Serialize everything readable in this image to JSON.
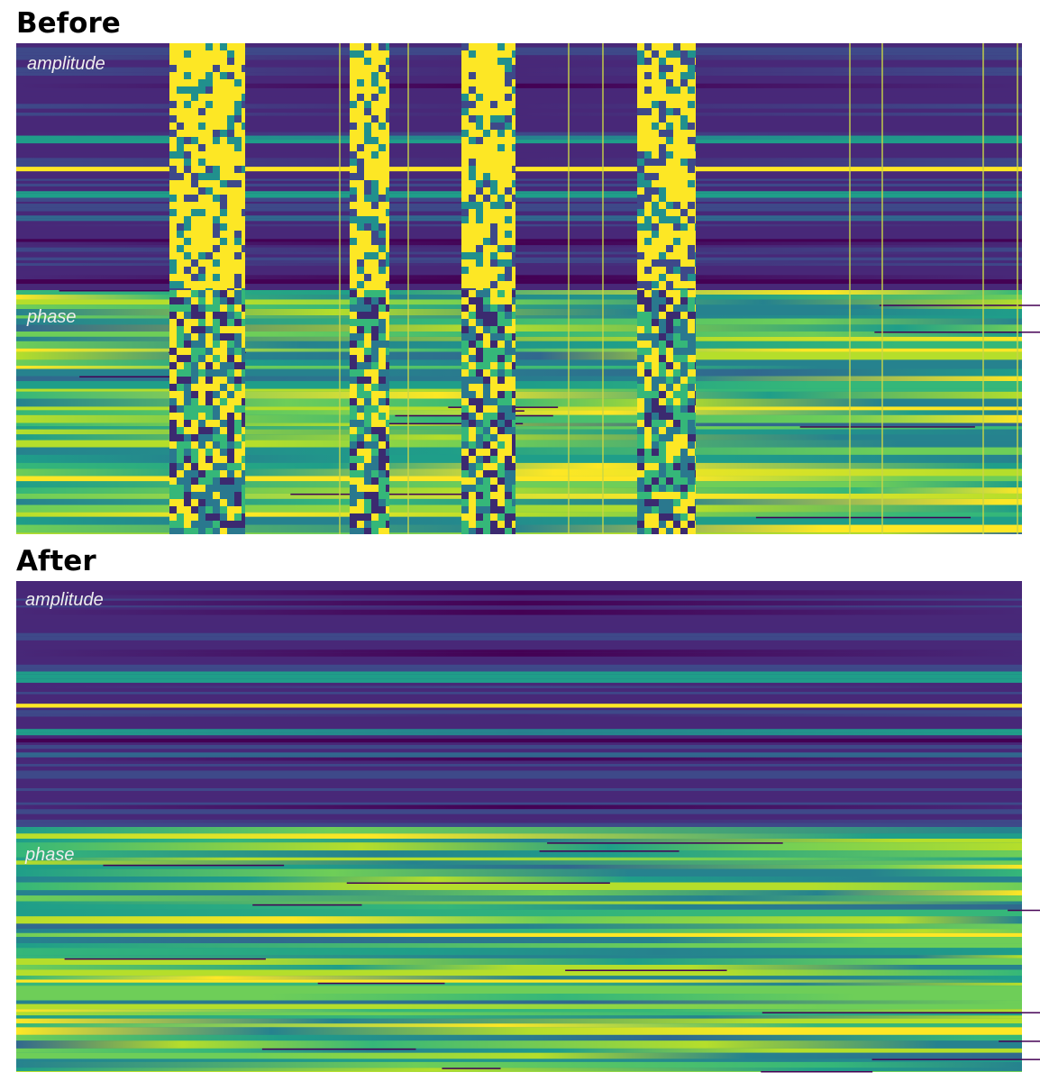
{
  "panels": [
    {
      "title": "Before",
      "sections": [
        {
          "label": "amplitude"
        },
        {
          "label": "phase"
        }
      ]
    },
    {
      "title": "After",
      "sections": [
        {
          "label": "amplitude"
        },
        {
          "label": "phase"
        }
      ]
    }
  ]
}
